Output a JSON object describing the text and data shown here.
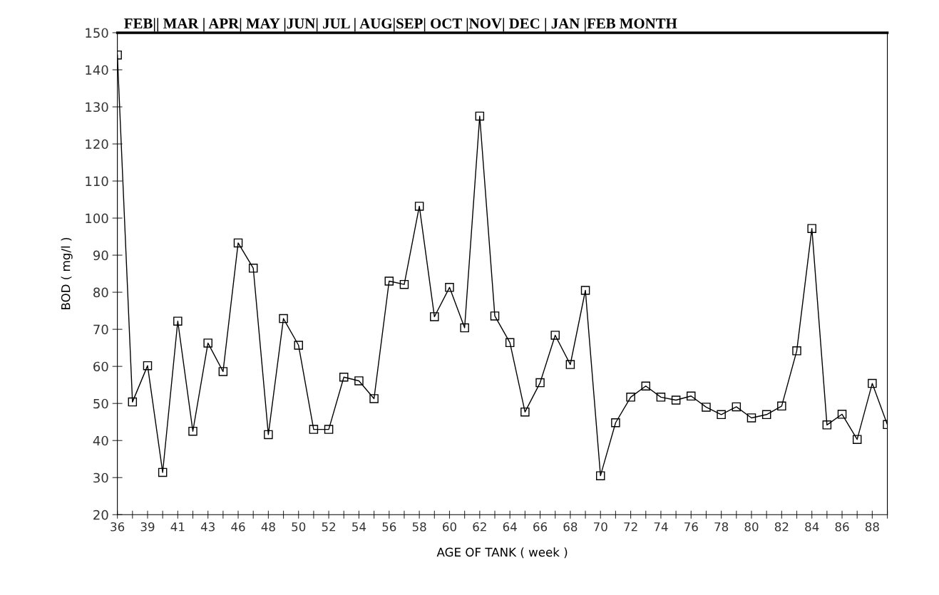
{
  "chart_data": {
    "type": "line",
    "xlabel": "AGE OF TANK ( week )",
    "ylabel": "BOD ( mg/l )",
    "annotations": [
      "FEB|| MAR | APR| MAY |JUN| JUL | AUG|SEP| OCT |NOV| DEC | JAN |FEB MONTH"
    ],
    "categories": [
      "36",
      null,
      "39",
      null,
      "41",
      null,
      "43",
      null,
      "46",
      null,
      "48",
      null,
      "50",
      null,
      "52",
      null,
      "54",
      null,
      "56",
      null,
      "58",
      null,
      "60",
      null,
      "62",
      null,
      "64",
      null,
      "66",
      null,
      "68",
      null,
      "70",
      null,
      "72",
      null,
      "74",
      null,
      "76",
      null,
      "78",
      null,
      "80",
      null,
      "82",
      null,
      "84",
      null,
      "86",
      null,
      "88",
      null
    ],
    "series": [
      {
        "color": "#000000",
        "values": [
          144,
          50.4,
          60.2,
          31.4,
          72.2,
          42.5,
          66.3,
          58.6,
          93.3,
          86.5,
          41.6,
          72.9,
          65.7,
          43,
          43,
          57.1,
          56.1,
          51.3,
          83,
          82.1,
          103.2,
          73.4,
          81.3,
          70.4,
          127.5,
          73.6,
          66.4,
          47.7,
          55.6,
          68.4,
          60.5,
          80.5,
          30.5,
          44.8,
          51.7,
          54.7,
          51.7,
          50.9,
          52,
          49,
          47,
          49.1,
          46.1,
          47,
          49.3,
          64.2,
          97.2,
          44.2,
          47.1,
          40.3,
          55.4,
          44.3
        ]
      }
    ],
    "ylim": [
      20,
      150
    ],
    "yticks": [
      20,
      30,
      40,
      50,
      60,
      70,
      80,
      90,
      100,
      110,
      120,
      130,
      140,
      150
    ],
    "grid": false,
    "legend": false,
    "marker": "square",
    "line_style": "solid"
  }
}
